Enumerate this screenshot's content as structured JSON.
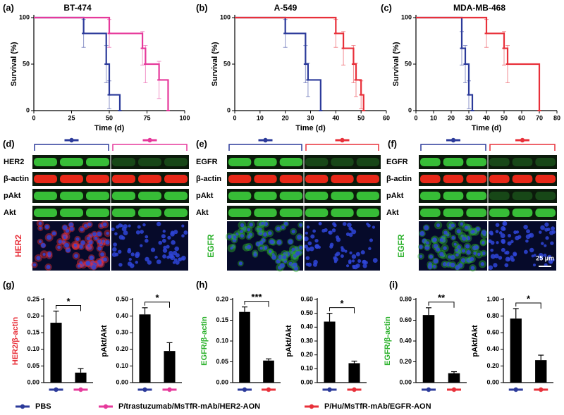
{
  "panel_labels": [
    "(a)",
    "(b)",
    "(c)",
    "(d)",
    "(e)",
    "(f)",
    "(g)",
    "(h)",
    "(i)"
  ],
  "legend": [
    {
      "name": "PBS",
      "color": "#2b3a9a"
    },
    {
      "name": "P/trastuzumab/MsTfR-mAb/HER2-AON",
      "color": "#e6399b"
    },
    {
      "name": "P/Hu/MsTfR-mAb/EGFR-AON",
      "color": "#e8303a"
    }
  ],
  "blots": [
    {
      "rows": [
        {
          "label": "HER2",
          "color": "#3ccf3c"
        },
        {
          "label": "β-actin",
          "color": "#ff2a1a"
        },
        {
          "label": "pAkt",
          "color": "#3ccf3c"
        },
        {
          "label": "Akt",
          "color": "#3ccf3c"
        }
      ],
      "stain": "HER2",
      "stain_color": "#e8303a",
      "group_colors": [
        "#2b3a9a",
        "#e6399b"
      ]
    },
    {
      "rows": [
        {
          "label": "EGFR",
          "color": "#3ccf3c"
        },
        {
          "label": "β-actin",
          "color": "#ff2a1a"
        },
        {
          "label": "pAkt",
          "color": "#3ccf3c"
        },
        {
          "label": "Akt",
          "color": "#3ccf3c"
        }
      ],
      "stain": "EGFR",
      "stain_color": "#2db22d",
      "group_colors": [
        "#2b3a9a",
        "#e8303a"
      ]
    },
    {
      "rows": [
        {
          "label": "EGFR",
          "color": "#3ccf3c"
        },
        {
          "label": "β-actin",
          "color": "#ff2a1a"
        },
        {
          "label": "pAkt",
          "color": "#3ccf3c"
        },
        {
          "label": "Akt",
          "color": "#3ccf3c"
        }
      ],
      "stain": "EGFR",
      "stain_color": "#2db22d",
      "group_colors": [
        "#2b3a9a",
        "#e8303a"
      ]
    }
  ],
  "scale_bar": "25 µm",
  "chart_data": [
    {
      "type": "step",
      "title": "BT-474",
      "xlabel": "Time (d)",
      "ylabel": "Survival (%)",
      "xlim": [
        0,
        100
      ],
      "xticks": [
        0,
        25,
        50,
        75,
        100
      ],
      "ylim": [
        0,
        100
      ],
      "yticks": [
        0,
        50,
        100
      ],
      "series": [
        {
          "color": "#2b3a9a",
          "x": [
            0,
            33,
            48,
            50,
            57
          ],
          "values": [
            100,
            83,
            50,
            17,
            0
          ],
          "errors": [
            0,
            15,
            20,
            15,
            0
          ]
        },
        {
          "color": "#e6399b",
          "x": [
            0,
            50,
            72,
            74,
            83,
            89
          ],
          "values": [
            100,
            83,
            67,
            50,
            33,
            0
          ],
          "errors": [
            0,
            15,
            18,
            20,
            20,
            0
          ]
        }
      ]
    },
    {
      "type": "step",
      "title": "A-549",
      "xlabel": "Time (d)",
      "ylabel": "Survival (%)",
      "xlim": [
        0,
        60
      ],
      "xticks": [
        0,
        10,
        20,
        30,
        40,
        50,
        60
      ],
      "ylim": [
        0,
        100
      ],
      "yticks": [
        0,
        50,
        100
      ],
      "series": [
        {
          "color": "#2b3a9a",
          "x": [
            0,
            20,
            28,
            29,
            34
          ],
          "values": [
            100,
            83,
            50,
            33,
            0
          ],
          "errors": [
            0,
            15,
            20,
            18,
            0
          ]
        },
        {
          "color": "#e8303a",
          "x": [
            0,
            40,
            43,
            47,
            48,
            50,
            51
          ],
          "values": [
            100,
            83,
            67,
            50,
            33,
            17,
            0
          ],
          "errors": [
            0,
            15,
            18,
            20,
            18,
            15,
            0
          ]
        }
      ]
    },
    {
      "type": "step",
      "title": "MDA-MB-468",
      "xlabel": "Time (d)",
      "ylabel": "Survival (%)",
      "xlim": [
        0,
        80
      ],
      "xticks": [
        0,
        10,
        20,
        30,
        40,
        50,
        60,
        70,
        80
      ],
      "ylim": [
        0,
        100
      ],
      "yticks": [
        0,
        50,
        100
      ],
      "series": [
        {
          "color": "#2b3a9a",
          "x": [
            0,
            26,
            28,
            30,
            32
          ],
          "values": [
            100,
            67,
            50,
            17,
            0
          ],
          "errors": [
            0,
            18,
            20,
            15,
            0
          ]
        },
        {
          "color": "#e8303a",
          "x": [
            0,
            40,
            50,
            52,
            70
          ],
          "values": [
            100,
            83,
            67,
            50,
            0
          ],
          "errors": [
            0,
            15,
            18,
            20,
            0
          ]
        }
      ]
    },
    {
      "type": "bar",
      "ylabel": "HER2/β-actin",
      "ylabel_color": "#e8303a",
      "ylim": [
        0,
        0.25
      ],
      "yticks": [
        {
          "value": 0,
          "label": "0.00"
        },
        {
          "value": 0.05,
          "label": "0.05"
        },
        {
          "value": 0.1,
          "label": "0.10"
        },
        {
          "value": 0.15,
          "label": "0.15"
        },
        {
          "value": 0.2,
          "label": "0.20"
        },
        {
          "value": 0.25,
          "label": "0.25"
        }
      ],
      "values": [
        0.18,
        0.03
      ],
      "errors": [
        0.035,
        0.012
      ],
      "colors": [
        "#2b3a9a",
        "#e6399b"
      ],
      "significance": "*"
    },
    {
      "type": "bar",
      "ylabel": "pAkt/Akt",
      "ylabel_color": "#000000",
      "ylim": [
        0,
        0.5
      ],
      "yticks": [
        {
          "value": 0,
          "label": "0.00"
        },
        {
          "value": 0.1,
          "label": "0.10"
        },
        {
          "value": 0.2,
          "label": "0.20"
        },
        {
          "value": 0.3,
          "label": "0.30"
        },
        {
          "value": 0.4,
          "label": "0.40"
        },
        {
          "value": 0.5,
          "label": "0.50"
        }
      ],
      "values": [
        0.41,
        0.19
      ],
      "errors": [
        0.04,
        0.05
      ],
      "colors": [
        "#2b3a9a",
        "#e6399b"
      ],
      "significance": "*"
    },
    {
      "type": "bar",
      "ylabel": "EGFR/β-actin",
      "ylabel_color": "#2db22d",
      "ylim": [
        0,
        0.2
      ],
      "yticks": [
        {
          "value": 0,
          "label": "0.00"
        },
        {
          "value": 0.05,
          "label": "0.05"
        },
        {
          "value": 0.1,
          "label": "0.10"
        },
        {
          "value": 0.15,
          "label": "0.15"
        },
        {
          "value": 0.2,
          "label": "0.20"
        }
      ],
      "values": [
        0.17,
        0.053
      ],
      "errors": [
        0.012,
        0.004
      ],
      "colors": [
        "#2b3a9a",
        "#e8303a"
      ],
      "significance": "***"
    },
    {
      "type": "bar",
      "ylabel": "pAkt/Akt",
      "ylabel_color": "#000000",
      "ylim": [
        0,
        0.6
      ],
      "yticks": [
        {
          "value": 0,
          "label": "0.00"
        },
        {
          "value": 0.1,
          "label": "0.10"
        },
        {
          "value": 0.2,
          "label": "0.20"
        },
        {
          "value": 0.3,
          "label": "0.30"
        },
        {
          "value": 0.4,
          "label": "0.40"
        },
        {
          "value": 0.5,
          "label": "0.50"
        },
        {
          "value": 0.6,
          "label": "0.60"
        }
      ],
      "values": [
        0.44,
        0.14
      ],
      "errors": [
        0.06,
        0.015
      ],
      "colors": [
        "#2b3a9a",
        "#e8303a"
      ],
      "significance": "*"
    },
    {
      "type": "bar",
      "ylabel": "EGFR/β-actin",
      "ylabel_color": "#2db22d",
      "ylim": [
        0,
        0.8
      ],
      "yticks": [
        {
          "value": 0,
          "label": "0.00"
        },
        {
          "value": 0.2,
          "label": "0.20"
        },
        {
          "value": 0.4,
          "label": "0.40"
        },
        {
          "value": 0.6,
          "label": "0.60"
        },
        {
          "value": 0.8,
          "label": "0.80"
        }
      ],
      "values": [
        0.65,
        0.09
      ],
      "errors": [
        0.07,
        0.015
      ],
      "colors": [
        "#2b3a9a",
        "#e8303a"
      ],
      "significance": "**"
    },
    {
      "type": "bar",
      "ylabel": "pAkt/Akt",
      "ylabel_color": "#000000",
      "ylim": [
        0,
        1
      ],
      "yticks": [
        {
          "value": 0,
          "label": "0.00"
        },
        {
          "value": 0.2,
          "label": "0.20"
        },
        {
          "value": 0.4,
          "label": "0.40"
        },
        {
          "value": 0.6,
          "label": "0.60"
        },
        {
          "value": 0.8,
          "label": "0.80"
        },
        {
          "value": 1,
          "label": "1.00"
        }
      ],
      "values": [
        0.77,
        0.27
      ],
      "errors": [
        0.12,
        0.06
      ],
      "colors": [
        "#2b3a9a",
        "#e8303a"
      ],
      "significance": "*"
    }
  ]
}
